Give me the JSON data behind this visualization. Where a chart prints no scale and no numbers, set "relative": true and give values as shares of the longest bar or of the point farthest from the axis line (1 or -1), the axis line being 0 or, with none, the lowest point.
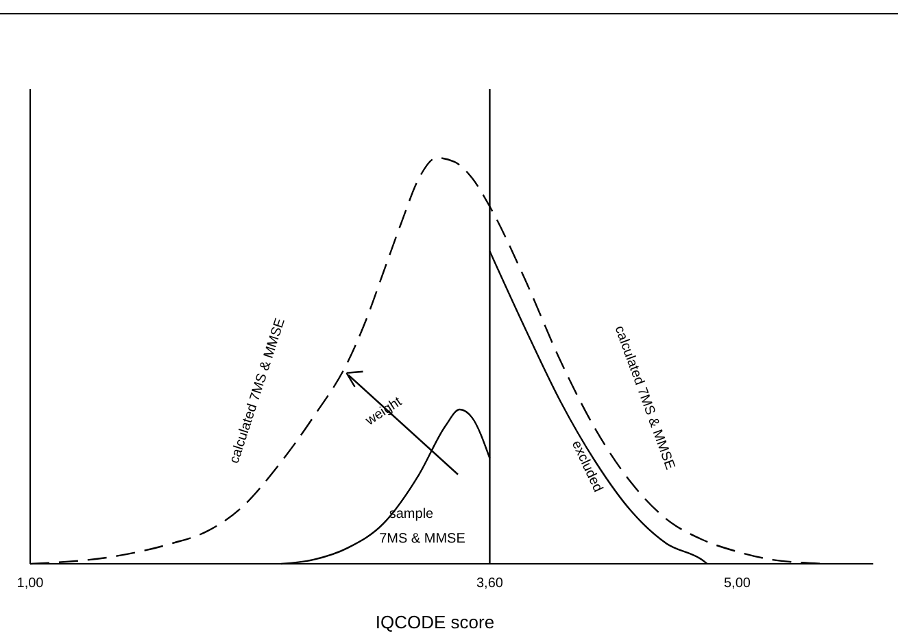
{
  "chart_data": {
    "type": "line",
    "relative": true,
    "xlabel": "IQCODE score",
    "xlim": [
      1,
      5.77
    ],
    "xticks": [
      {
        "value": 1,
        "label": "1,00"
      },
      {
        "value": 3.6,
        "label": "3,60"
      },
      {
        "value": 5,
        "label": "5,00"
      }
    ],
    "series": [
      {
        "color": "#000000",
        "line_style": "dashed",
        "x": [
          1.0,
          1.5,
          1.8,
          2.0,
          2.2,
          2.4,
          2.6,
          2.8,
          2.9,
          3.0,
          3.1,
          3.2,
          3.3,
          3.4,
          3.5,
          3.6,
          3.8,
          4.0,
          4.2,
          4.4,
          4.6,
          4.8,
          5.0,
          5.2,
          5.5
        ],
        "values": [
          0,
          0.02,
          0.05,
          0.08,
          0.14,
          0.24,
          0.36,
          0.5,
          0.6,
          0.72,
          0.84,
          0.95,
          1.0,
          0.99,
          0.95,
          0.88,
          0.7,
          0.5,
          0.33,
          0.2,
          0.11,
          0.06,
          0.03,
          0.01,
          0
        ]
      },
      {
        "color": "#000000",
        "line_style": "solid",
        "x": [
          2.42,
          2.6,
          2.8,
          3.0,
          3.2,
          3.35,
          3.43,
          3.5,
          3.6
        ],
        "values": [
          0,
          0.01,
          0.04,
          0.1,
          0.22,
          0.34,
          0.38,
          0.36,
          0.26
        ]
      },
      {
        "color": "#000000",
        "line_style": "solid",
        "x": [
          3.6,
          3.8,
          4.0,
          4.2,
          4.4,
          4.6,
          4.8,
          4.83
        ],
        "values": [
          0.77,
          0.58,
          0.4,
          0.25,
          0.13,
          0.05,
          0.01,
          0
        ]
      }
    ],
    "ref_lines": [
      {
        "axis": "x",
        "value": 3.6,
        "color": "#000000"
      }
    ],
    "annotations": [
      "calculated 7MS & MMSE",
      "weight",
      "calculated 7MS & MMSE",
      "excluded",
      "sample",
      "7MS & MMSE"
    ]
  }
}
